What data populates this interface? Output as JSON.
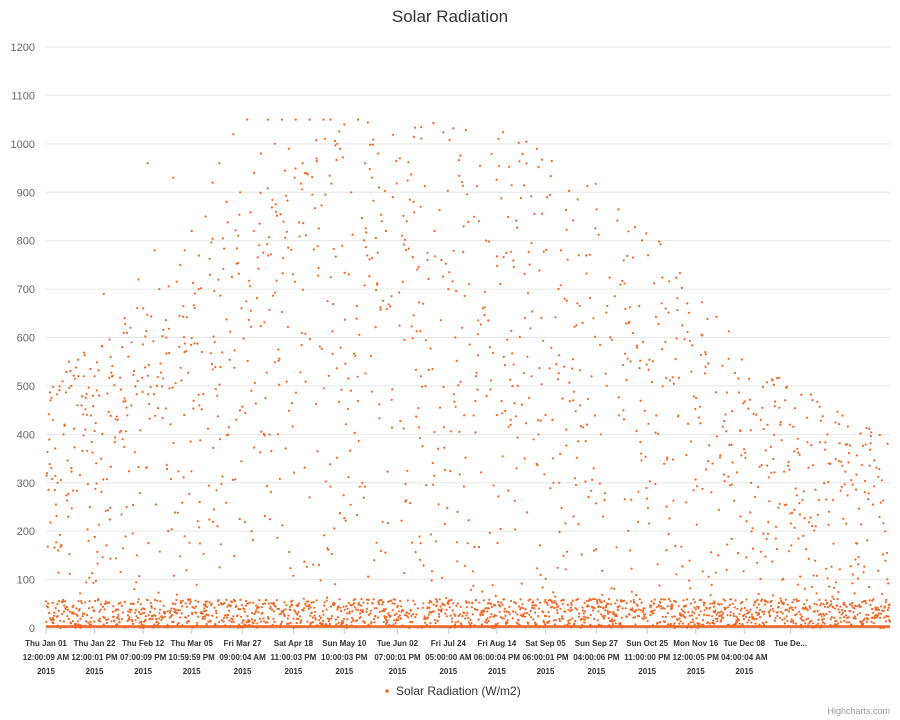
{
  "chart_data": {
    "type": "scatter",
    "title": "Solar Radiation",
    "xlabel": "",
    "ylabel": "",
    "ylim": [
      0,
      1200
    ],
    "yticks": [
      0,
      100,
      200,
      300,
      400,
      500,
      600,
      700,
      800,
      900,
      1000,
      1100,
      1200
    ],
    "xlim_days": [
      0,
      365
    ],
    "x_tick_labels": [
      {
        "day": 0,
        "line1": "Thu Jan 01",
        "line2": "12:00:09 AM",
        "line3": "2015"
      },
      {
        "day": 21,
        "line1": "Thu Jan 22",
        "line2": "12:00:01 PM",
        "line3": "2015"
      },
      {
        "day": 42,
        "line1": "Thu Feb 12",
        "line2": "07:00:09 PM",
        "line3": "2015"
      },
      {
        "day": 63,
        "line1": "Thu Mar 05",
        "line2": "10:59:59 PM",
        "line3": "2015"
      },
      {
        "day": 85,
        "line1": "Fri Mar 27",
        "line2": "09:00:04 AM",
        "line3": "2015"
      },
      {
        "day": 107,
        "line1": "Sat Apr 18",
        "line2": "11:00:03 PM",
        "line3": "2015"
      },
      {
        "day": 129,
        "line1": "Sun May 10",
        "line2": "10:00:03 PM",
        "line3": "2015"
      },
      {
        "day": 152,
        "line1": "Tue Jun 02",
        "line2": "07:00:01 PM",
        "line3": "2015"
      },
      {
        "day": 174,
        "line1": "Fri Jul 24",
        "line2": "05:00:00 AM",
        "line3": "2015"
      },
      {
        "day": 195,
        "line1": "Fri Aug 14",
        "line2": "06:00:04 PM",
        "line3": "2015"
      },
      {
        "day": 216,
        "line1": "Sat Sep 05",
        "line2": "06:00:01 PM",
        "line3": "2015"
      },
      {
        "day": 238,
        "line1": "Sun Sep 27",
        "line2": "04:00:06 PM",
        "line3": "2015"
      },
      {
        "day": 260,
        "line1": "Sun Oct 25",
        "line2": "11:00:00 PM",
        "line3": "2015"
      },
      {
        "day": 281,
        "line1": "Mon Nov 16",
        "line2": "12:00:05 PM",
        "line3": "2015"
      },
      {
        "day": 302,
        "line1": "Tue Dec 08",
        "line2": "04:00:04 AM",
        "line3": "2015"
      },
      {
        "day": 322,
        "line1": "Tue De...",
        "line2": "",
        "line3": ""
      }
    ],
    "series": [
      {
        "name": "Solar Radiation (W/m2)",
        "color": "#f26522",
        "envelope_peak_by_month": [
          520,
          620,
          760,
          900,
          1050,
          1050,
          1050,
          1000,
          900,
          760,
          560,
          480
        ],
        "points": [
          [
            2,
            470
          ],
          [
            3,
            430
          ],
          [
            5,
            300
          ],
          [
            8,
            420
          ],
          [
            11,
            500
          ],
          [
            12,
            30
          ],
          [
            14,
            520
          ],
          [
            17,
            410
          ],
          [
            19,
            250
          ],
          [
            21,
            520
          ],
          [
            23,
            480
          ],
          [
            25,
            690
          ],
          [
            28,
            560
          ],
          [
            31,
            430
          ],
          [
            34,
            640
          ],
          [
            37,
            590
          ],
          [
            40,
            720
          ],
          [
            42,
            660
          ],
          [
            44,
            960
          ],
          [
            47,
            780
          ],
          [
            49,
            700
          ],
          [
            52,
            600
          ],
          [
            55,
            930
          ],
          [
            58,
            750
          ],
          [
            60,
            780
          ],
          [
            63,
            820
          ],
          [
            66,
            700
          ],
          [
            69,
            850
          ],
          [
            72,
            920
          ],
          [
            75,
            960
          ],
          [
            78,
            880
          ],
          [
            81,
            1020
          ],
          [
            84,
            900
          ],
          [
            87,
            1050
          ],
          [
            90,
            940
          ],
          [
            93,
            980
          ],
          [
            96,
            1050
          ],
          [
            99,
            1000
          ],
          [
            102,
            1050
          ],
          [
            105,
            990
          ],
          [
            108,
            1050
          ],
          [
            111,
            960
          ],
          [
            114,
            1050
          ],
          [
            117,
            970
          ],
          [
            120,
            1050
          ],
          [
            123,
            1050
          ],
          [
            126,
            1000
          ],
          [
            129,
            1040
          ],
          [
            132,
            900
          ],
          [
            135,
            1050
          ],
          [
            138,
            960
          ],
          [
            141,
            930
          ],
          [
            144,
            910
          ],
          [
            147,
            820
          ],
          [
            150,
            890
          ],
          [
            153,
            970
          ],
          [
            156,
            840
          ],
          [
            159,
            880
          ],
          [
            162,
            870
          ],
          [
            165,
            760
          ],
          [
            168,
            820
          ],
          [
            171,
            760
          ],
          [
            174,
            700
          ],
          [
            177,
            600
          ],
          [
            180,
            620
          ],
          [
            183,
            710
          ],
          [
            186,
            520
          ],
          [
            189,
            660
          ],
          [
            192,
            580
          ],
          [
            195,
            440
          ],
          [
            198,
            560
          ],
          [
            201,
            430
          ],
          [
            204,
            500
          ],
          [
            207,
            350
          ],
          [
            210,
            520
          ],
          [
            213,
            400
          ],
          [
            216,
            440
          ],
          [
            219,
            430
          ],
          [
            222,
            300
          ],
          [
            225,
            410
          ],
          [
            228,
            470
          ],
          [
            231,
            460
          ],
          [
            234,
            420
          ],
          [
            237,
            160
          ],
          [
            240,
            400
          ]
        ]
      }
    ],
    "legend": {
      "position": "bottom-center",
      "label": "Solar Radiation (W/m2)"
    },
    "grid": true
  },
  "credits": "Highcharts.com"
}
